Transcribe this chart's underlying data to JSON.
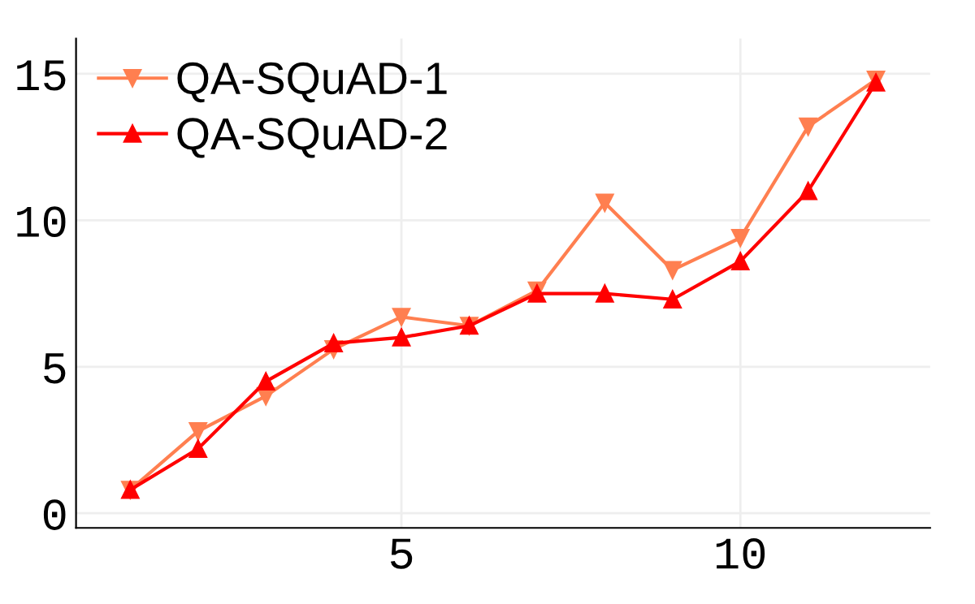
{
  "chart_data": {
    "type": "line",
    "x": [
      1,
      2,
      3,
      4,
      5,
      6,
      7,
      8,
      9,
      10,
      11,
      12
    ],
    "series": [
      {
        "name": "QA-SQuAD-1",
        "color": "#ff7f50",
        "marker": "triangle_down",
        "values": [
          0.8,
          2.8,
          4.0,
          5.6,
          6.7,
          6.4,
          7.6,
          10.6,
          8.3,
          9.4,
          13.2,
          14.8
        ]
      },
      {
        "name": "QA-SQuAD-2",
        "color": "#ff0000",
        "marker": "triangle",
        "values": [
          0.8,
          2.2,
          4.5,
          5.8,
          6.0,
          6.4,
          7.5,
          7.5,
          7.3,
          8.6,
          11.0,
          14.7
        ]
      }
    ],
    "xlim": [
      0.2,
      12.8
    ],
    "ylim": [
      -0.5,
      16.2
    ],
    "xticks": [
      5,
      10
    ],
    "yticks": [
      0,
      5,
      10,
      15
    ],
    "grid": true,
    "legend": "top left",
    "line_style": "solid"
  }
}
